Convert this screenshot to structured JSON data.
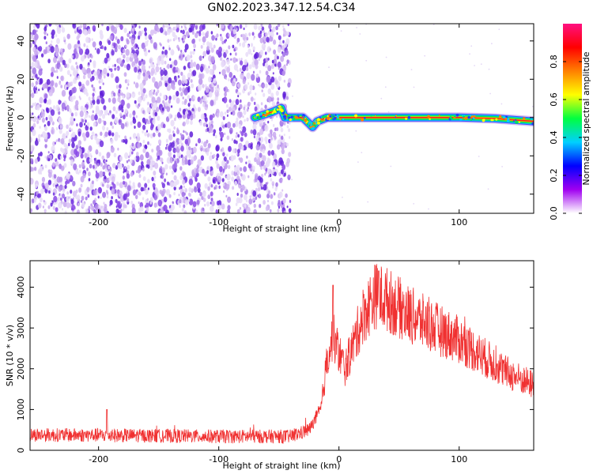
{
  "title": "GN02.2023.347.12.54.C34",
  "chart_data": [
    {
      "type": "heatmap",
      "xlabel": "Height of straight line (km)",
      "ylabel": "Frequency (Hz)",
      "xlim": [
        -257,
        162
      ],
      "ylim": [
        -50,
        49
      ],
      "xticks": [
        -200,
        -100,
        0,
        100
      ],
      "yticks": [
        -40,
        -20,
        0,
        20,
        40
      ],
      "xtick_labels": [
        "-200",
        "-100",
        "0",
        "100"
      ],
      "ytick_labels": [
        "-40",
        "-20",
        "0",
        "20",
        "40"
      ],
      "noise_region_x": [
        -257,
        -47
      ],
      "signal_band": [
        {
          "x": -70,
          "y": 0
        },
        {
          "x": -55,
          "y": 3
        },
        {
          "x": -48,
          "y": 5
        },
        {
          "x": -45,
          "y": 0
        },
        {
          "x": -30,
          "y": 0
        },
        {
          "x": -25,
          "y": -3
        },
        {
          "x": -22,
          "y": -5
        },
        {
          "x": -18,
          "y": -2
        },
        {
          "x": -10,
          "y": 0
        },
        {
          "x": 0,
          "y": 0
        },
        {
          "x": 50,
          "y": 0
        },
        {
          "x": 100,
          "y": 0
        },
        {
          "x": 130,
          "y": -0.5
        },
        {
          "x": 162,
          "y": -2
        }
      ],
      "colorbar": {
        "label": "Normalized spectral amplitude",
        "range": [
          0,
          1
        ],
        "ticks": [
          0.0,
          0.2,
          0.4,
          0.6,
          0.8
        ],
        "tick_labels": [
          "0.0",
          "0.2",
          "0.4",
          "0.6",
          "0.8"
        ],
        "colors": [
          "#ffffff",
          "#a000f0",
          "#0000ff",
          "#00d0ff",
          "#00ff40",
          "#ffff00",
          "#ff8000",
          "#ff0000",
          "#ff1080"
        ]
      }
    },
    {
      "type": "line",
      "xlabel": "Height of straight line (km)",
      "ylabel": "SNR (10 * v/v)",
      "xlim": [
        -257,
        162
      ],
      "ylim": [
        0,
        4650
      ],
      "xticks": [
        -200,
        -100,
        0,
        100
      ],
      "yticks": [
        0,
        1000,
        2000,
        3000,
        4000
      ],
      "xtick_labels": [
        "-200",
        "-100",
        "0",
        "100"
      ],
      "ytick_labels": [
        "0",
        "1000",
        "2000",
        "3000",
        "4000"
      ],
      "color": "#f03030",
      "envelope": [
        {
          "x": -257,
          "y": 380
        },
        {
          "x": -200,
          "y": 370
        },
        {
          "x": -100,
          "y": 340
        },
        {
          "x": -40,
          "y": 340
        },
        {
          "x": -25,
          "y": 500
        },
        {
          "x": -15,
          "y": 1000
        },
        {
          "x": -10,
          "y": 2200
        },
        {
          "x": -5,
          "y": 2800
        },
        {
          "x": 0,
          "y": 2400
        },
        {
          "x": 5,
          "y": 2000
        },
        {
          "x": 12,
          "y": 2600
        },
        {
          "x": 20,
          "y": 3300
        },
        {
          "x": 30,
          "y": 3800
        },
        {
          "x": 40,
          "y": 3700
        },
        {
          "x": 60,
          "y": 3300
        },
        {
          "x": 80,
          "y": 3000
        },
        {
          "x": 100,
          "y": 2700
        },
        {
          "x": 120,
          "y": 2300
        },
        {
          "x": 140,
          "y": 1900
        },
        {
          "x": 162,
          "y": 1600
        }
      ],
      "peaks": [
        {
          "x": -5,
          "y": 4050
        },
        {
          "x": 33,
          "y": 4400
        },
        {
          "x": -193,
          "y": 1000
        }
      ]
    }
  ]
}
